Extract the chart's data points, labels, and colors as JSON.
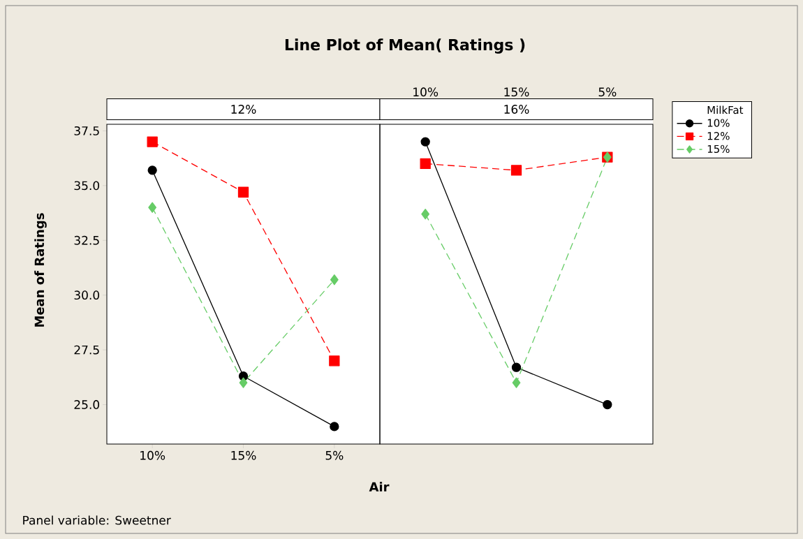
{
  "chart_data": [
    {
      "type": "line",
      "title": "12%",
      "xlabel": "Air",
      "ylabel": "Mean of Ratings",
      "legend_title": "MilkFat",
      "legend": "right",
      "annotations": [
        "Line Plot of Mean( Ratings )",
        "Panel variable: Sweetner"
      ],
      "categories": [
        "10%",
        "15%",
        "5%"
      ],
      "ylim": [
        23.2,
        37.8
      ],
      "yticks": [
        {
          "value": 25,
          "label": "25.0"
        },
        {
          "value": 27.5,
          "label": "27.5"
        },
        {
          "value": 30,
          "label": "30.0"
        },
        {
          "value": 32.5,
          "label": "32.5"
        },
        {
          "value": 35,
          "label": "35.0"
        },
        {
          "value": 37.5,
          "label": "37.5"
        }
      ],
      "series": [
        {
          "name": "10%",
          "color": "#000000",
          "marker": "circle",
          "line_style": "solid",
          "values": [
            35.7,
            26.3,
            24.0
          ]
        },
        {
          "name": "12%",
          "color": "#ff0000",
          "marker": "square",
          "line_style": "dashed",
          "values": [
            37.0,
            34.7,
            27.0
          ]
        },
        {
          "name": "15%",
          "color": "#66cc66",
          "marker": "diamond",
          "line_style": "dashed",
          "values": [
            34.0,
            26.0,
            30.7
          ]
        }
      ]
    },
    {
      "type": "line",
      "title": "16%",
      "tick_labels": "x",
      "categories": [
        "10%",
        "15%",
        "5%"
      ],
      "ylim": [
        23.2,
        37.8
      ],
      "series": [
        {
          "color": "#000000",
          "marker": "circle",
          "line_style": "solid",
          "values": [
            37.0,
            26.7,
            25.0
          ]
        },
        {
          "color": "#ff0000",
          "marker": "square",
          "line_style": "dashed",
          "values": [
            36.0,
            35.7,
            36.3
          ]
        },
        {
          "color": "#66cc66",
          "marker": "diamond",
          "line_style": "dashed",
          "values": [
            33.7,
            26.0,
            36.3
          ]
        }
      ]
    }
  ]
}
